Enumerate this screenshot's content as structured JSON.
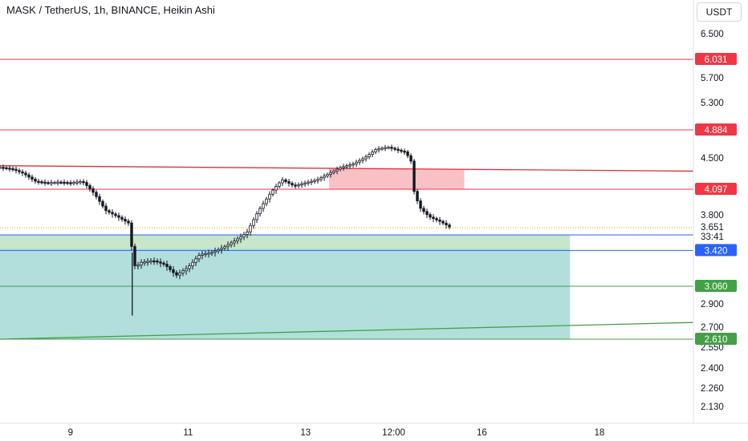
{
  "header": {
    "title": "MASK / TetherUS, 1h, BINANCE, Heikin Ashi",
    "currency": "USDT"
  },
  "chart_data": {
    "type": "candlestick",
    "symbol": "MASK / TetherUS",
    "interval": "1h",
    "exchange": "BINANCE",
    "style": "Heikin Ashi",
    "y_ticks": [
      "6.500",
      "5.700",
      "5.300",
      "4.500",
      "3.800",
      "2.900",
      "2.700",
      "2.550",
      "2.400",
      "2.260",
      "2.130"
    ],
    "x_ticks": [
      {
        "label": "9",
        "pos": 0.5
      },
      {
        "label": "11",
        "pos": 2.5
      },
      {
        "label": "13",
        "pos": 4.5
      },
      {
        "label": "12:00",
        "pos": 6.0
      },
      {
        "label": "16",
        "pos": 7.5
      },
      {
        "label": "18",
        "pos": 9.5
      }
    ],
    "x_range": [
      -0.7,
      11.1
    ],
    "horizontal_levels": [
      {
        "value": 6.031,
        "label": "6.031",
        "kind": "resistance"
      },
      {
        "value": 4.884,
        "label": "4.884",
        "kind": "resistance"
      },
      {
        "value": 4.097,
        "label": "4.097",
        "kind": "resistance"
      },
      {
        "value": 3.577,
        "label": "3.577",
        "kind": "blue"
      },
      {
        "value": 3.06,
        "label": "3.060",
        "kind": "support"
      },
      {
        "value": 2.61,
        "label": "2.610",
        "kind": "support"
      }
    ],
    "current_price": {
      "value": 3.651,
      "label": "3.651",
      "countdown": "33:41"
    },
    "extra_price_label": {
      "value": 3.42,
      "label": "3.420"
    },
    "trend_lines": [
      {
        "kind": "resistance",
        "from": [
          -0.7,
          4.4
        ],
        "to": [
          11.1,
          4.33
        ]
      },
      {
        "kind": "support",
        "from": [
          -0.7,
          2.61
        ],
        "to": [
          11.1,
          2.74
        ]
      }
    ],
    "zones": [
      {
        "kind": "short",
        "x": [
          4.9,
          7.2
        ],
        "y": [
          4.097,
          4.36
        ]
      },
      {
        "kind": "long-target",
        "x": [
          -0.7,
          9.0
        ],
        "y": [
          3.44,
          3.577
        ]
      },
      {
        "kind": "long-stop",
        "x": [
          -0.7,
          9.0
        ],
        "y": [
          2.61,
          3.44
        ]
      }
    ],
    "price_path": [
      [
        -0.7,
        4.38
      ],
      [
        -0.5,
        4.36
      ],
      [
        -0.3,
        4.3
      ],
      [
        -0.1,
        4.2
      ],
      [
        0.1,
        4.18
      ],
      [
        0.3,
        4.19
      ],
      [
        0.5,
        4.18
      ],
      [
        0.7,
        4.2
      ],
      [
        0.9,
        4.05
      ],
      [
        1.1,
        3.85
      ],
      [
        1.3,
        3.78
      ],
      [
        1.5,
        3.7
      ],
      [
        1.55,
        3.4
      ],
      [
        1.6,
        3.25
      ],
      [
        1.7,
        3.3
      ],
      [
        1.9,
        3.32
      ],
      [
        2.1,
        3.28
      ],
      [
        2.3,
        3.17
      ],
      [
        2.5,
        3.25
      ],
      [
        2.7,
        3.38
      ],
      [
        2.9,
        3.4
      ],
      [
        3.1,
        3.45
      ],
      [
        3.3,
        3.52
      ],
      [
        3.5,
        3.6
      ],
      [
        3.7,
        3.85
      ],
      [
        3.9,
        4.05
      ],
      [
        4.1,
        4.22
      ],
      [
        4.3,
        4.14
      ],
      [
        4.5,
        4.18
      ],
      [
        4.7,
        4.22
      ],
      [
        4.9,
        4.3
      ],
      [
        5.1,
        4.38
      ],
      [
        5.3,
        4.42
      ],
      [
        5.5,
        4.5
      ],
      [
        5.7,
        4.62
      ],
      [
        5.9,
        4.65
      ],
      [
        6.1,
        4.6
      ],
      [
        6.2,
        4.58
      ],
      [
        6.3,
        4.45
      ],
      [
        6.35,
        4.05
      ],
      [
        6.45,
        3.88
      ],
      [
        6.6,
        3.78
      ],
      [
        6.8,
        3.72
      ],
      [
        6.95,
        3.66
      ]
    ]
  }
}
